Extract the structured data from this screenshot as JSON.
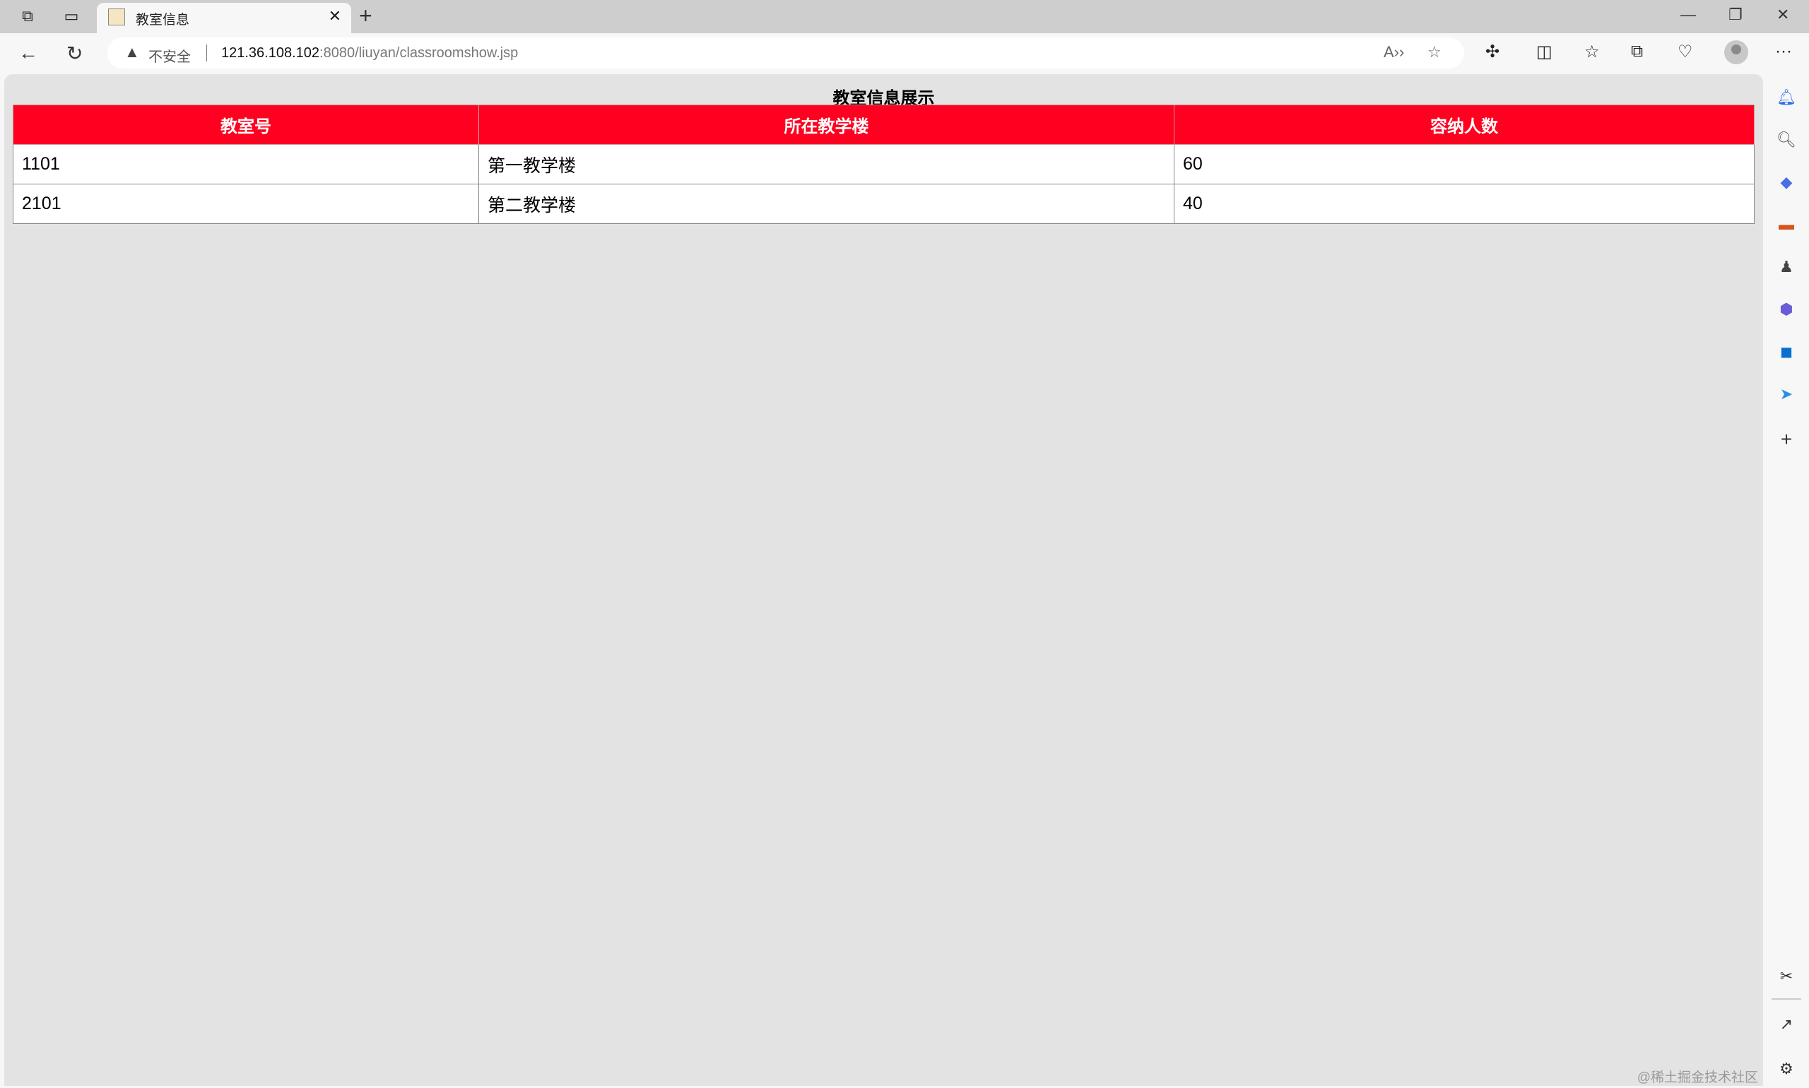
{
  "browser": {
    "tab": {
      "title": "教室信息",
      "favicon": "tomcat-icon"
    },
    "address": {
      "security_label": "不安全",
      "url_host": "121.36.108.102",
      "url_path": ":8080/liuyan/classroomshow.jsp"
    },
    "sidebar_icons": [
      "bell-icon",
      "search-icon",
      "tag-icon",
      "toolbox-icon",
      "games-icon",
      "office-icon",
      "outlook-icon",
      "send-icon",
      "add-icon",
      "screenshot-icon",
      "open-external-icon",
      "settings-icon"
    ]
  },
  "page": {
    "title": "教室信息展示",
    "table": {
      "header_color": "#ff0020",
      "columns": [
        "教室号",
        "所在教学楼",
        "容纳人数"
      ],
      "rows": [
        [
          "1101",
          "第一教学楼",
          "60"
        ],
        [
          "2101",
          "第二教学楼",
          "40"
        ]
      ]
    }
  },
  "watermark": "@稀土掘金技术社区"
}
